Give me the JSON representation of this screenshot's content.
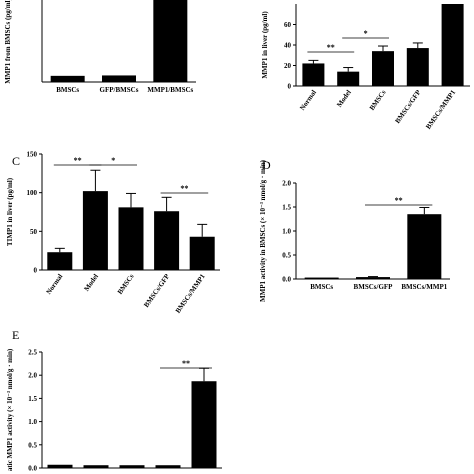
{
  "chart_data": [
    {
      "panel": "",
      "type": "bar",
      "ylabel": "MMP1 from BMSCs (pg/ml)",
      "categories": [
        "BMSCs",
        "GFP/BMSCs",
        "MMP1/BMSCs"
      ],
      "values": [
        30,
        32,
        400
      ],
      "errors": [
        0,
        0,
        0
      ],
      "ylim": [
        0,
        400
      ],
      "yticks": [],
      "significance": []
    },
    {
      "panel": "",
      "type": "bar",
      "ylabel": "MMP1 in liver (pg/ml)",
      "categories": [
        "Normal",
        "Model",
        "BMSCs",
        "BMSCs/GFP",
        "BMSCs/MMP1"
      ],
      "values": [
        22,
        14,
        34,
        37,
        80
      ],
      "errors": [
        3,
        4,
        5,
        5,
        0
      ],
      "ylim": [
        0,
        80
      ],
      "yticks": [
        0,
        20,
        40,
        60
      ],
      "significance": [
        {
          "from": 0,
          "to": 1,
          "label": "**"
        },
        {
          "from": 1,
          "to": 2,
          "label": "*"
        }
      ]
    },
    {
      "panel": "C",
      "type": "bar",
      "ylabel": "TIMP1 in liver (pg/ml)",
      "categories": [
        "Normal",
        "Model",
        "BMSCs",
        "BMSCs/GFP",
        "BMSCs/MMP1"
      ],
      "values": [
        23,
        102,
        81,
        76,
        43
      ],
      "errors": [
        5,
        27,
        18,
        18,
        16
      ],
      "ylim": [
        0,
        150
      ],
      "yticks": [
        0,
        50,
        100,
        150
      ],
      "significance": [
        {
          "from": 0,
          "to": 1,
          "label": "**"
        },
        {
          "from": 1,
          "to": 2,
          "label": "*"
        },
        {
          "from": 3,
          "to": 4,
          "label": "**"
        }
      ]
    },
    {
      "panel": "D",
      "type": "bar",
      "ylabel": "MMP1 activity in BMSCs (× 10⁻³ nmol/g · min)",
      "categories": [
        "BMSCs",
        "BMSCs/GFP",
        "BMSCs/MMP1"
      ],
      "values": [
        0.03,
        0.04,
        1.35
      ],
      "errors": [
        0,
        0.01,
        0.14
      ],
      "ylim": [
        0,
        2.0
      ],
      "yticks": [
        0.0,
        0.5,
        1.0,
        1.5,
        2.0
      ],
      "significance": [
        {
          "from": 1,
          "to": 2,
          "label": "**"
        }
      ]
    },
    {
      "panel": "E",
      "type": "bar",
      "ylabel": "atic MMP1 activity (× 10⁻³ nmol/g · min)",
      "categories": [
        "",
        "",
        "",
        "",
        ""
      ],
      "values": [
        0.07,
        0.06,
        0.06,
        0.06,
        1.87
      ],
      "errors": [
        0,
        0,
        0,
        0,
        0.28
      ],
      "ylim": [
        0,
        2.5
      ],
      "yticks": [
        0.0,
        0.5,
        1.0,
        1.5,
        2.0,
        2.5
      ],
      "significance": [
        {
          "from": 3,
          "to": 4,
          "label": "**"
        }
      ]
    }
  ]
}
